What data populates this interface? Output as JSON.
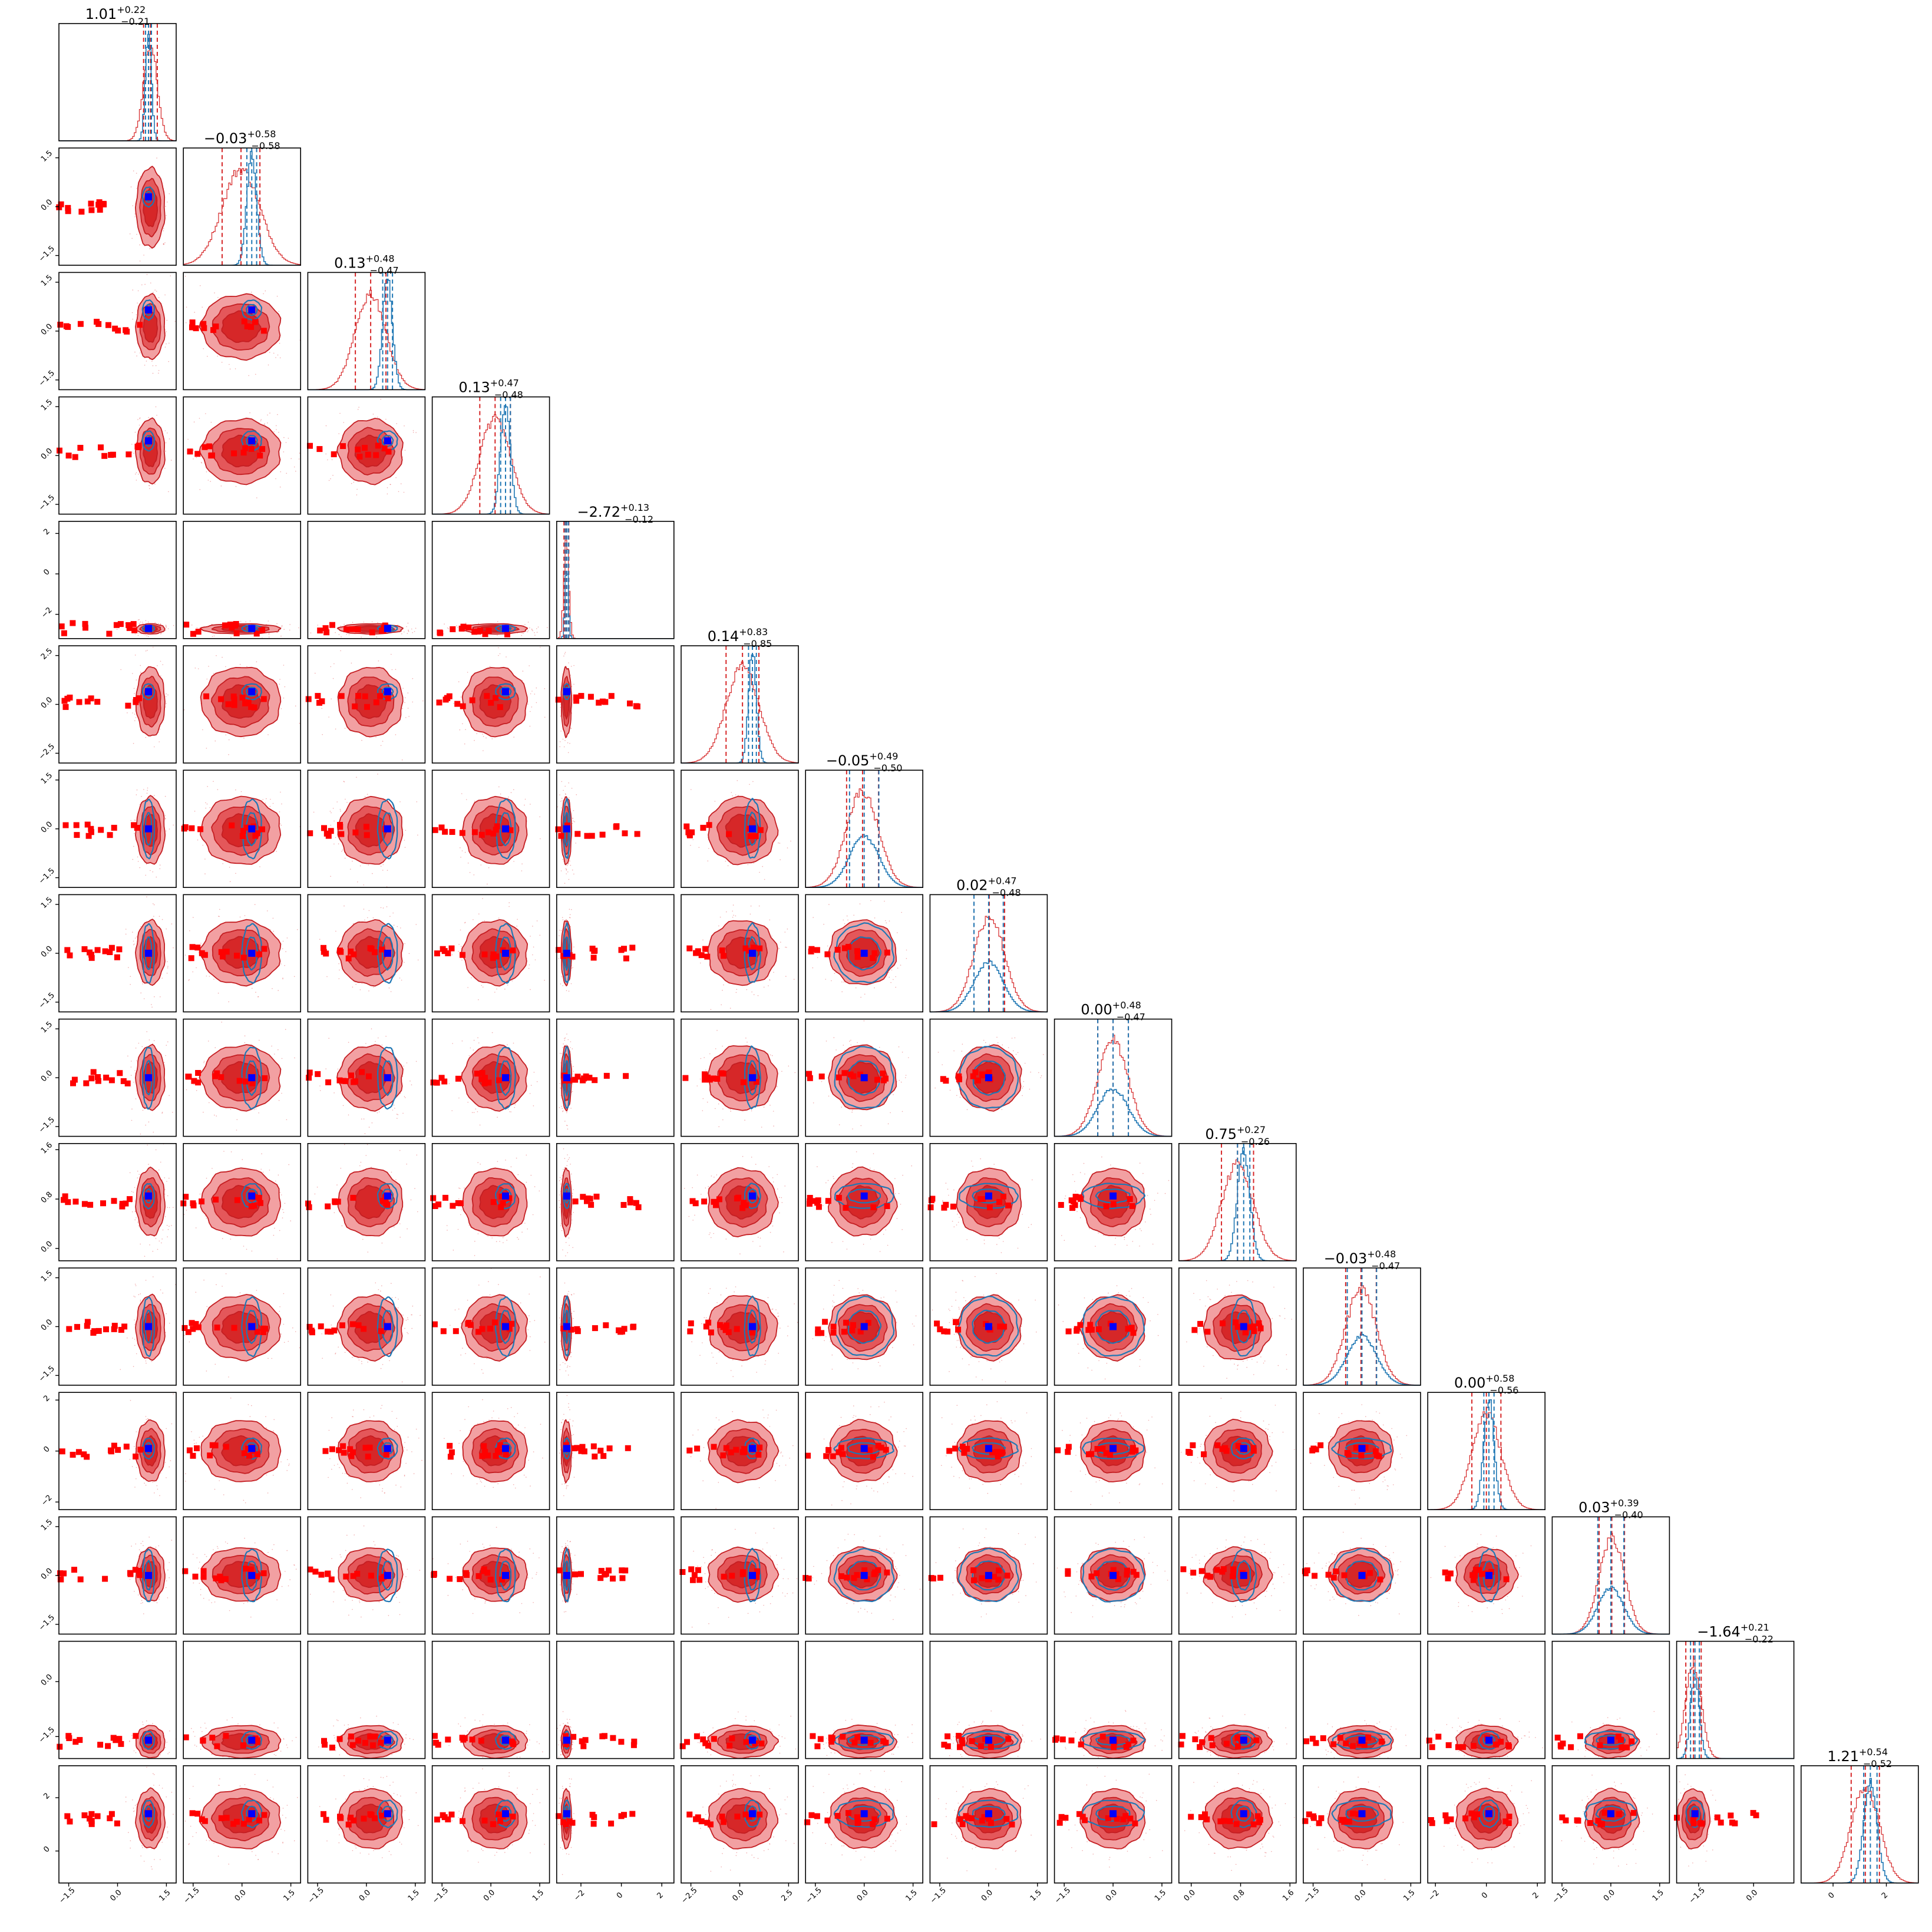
{
  "colors": {
    "red_main": "#d62728",
    "red_light": "#f2a0a2",
    "red_mid": "#e4575a",
    "red_dark": "#c41e22",
    "blue_main": "#1f77b4",
    "marker_blue": "#0000ff",
    "marker_red": "#ff0000",
    "frame": "#000000"
  },
  "chart_data": {
    "type": "corner",
    "n_params": 15,
    "grid": false,
    "parameters": [
      {
        "index": 0,
        "median": "1.01",
        "upper": "+0.22",
        "lower": "−0.21",
        "center": 1.01,
        "sigma": 0.21,
        "blue_center": 0.95,
        "blue_sigma": 0.09,
        "truth": 0.95,
        "range": [
          -1.8,
          1.8
        ],
        "ticks": [
          -1.5,
          0.0,
          1.5
        ],
        "tick_labels": [
          "−1.5",
          "0.0",
          "1.5"
        ]
      },
      {
        "index": 1,
        "median": "−0.03",
        "upper": "+0.58",
        "lower": "−0.58",
        "center": -0.03,
        "sigma": 0.58,
        "blue_center": 0.3,
        "blue_sigma": 0.15,
        "truth": 0.3,
        "range": [
          -1.8,
          1.8
        ],
        "ticks": [
          -1.5,
          0.0,
          1.5
        ],
        "tick_labels": [
          "−1.5",
          "0.0",
          "1.5"
        ]
      },
      {
        "index": 2,
        "median": "0.13",
        "upper": "+0.48",
        "lower": "−0.47",
        "center": 0.13,
        "sigma": 0.47,
        "blue_center": 0.65,
        "blue_sigma": 0.15,
        "truth": 0.65,
        "range": [
          -1.8,
          1.8
        ],
        "ticks": [
          -1.5,
          0.0,
          1.5
        ],
        "tick_labels": [
          "−1.5",
          "0.0",
          "1.5"
        ]
      },
      {
        "index": 3,
        "median": "0.13",
        "upper": "+0.47",
        "lower": "−0.48",
        "center": 0.13,
        "sigma": 0.47,
        "blue_center": 0.45,
        "blue_sigma": 0.15,
        "truth": 0.45,
        "range": [
          -1.8,
          1.8
        ],
        "ticks": [
          -1.5,
          0.0,
          1.5
        ],
        "tick_labels": [
          "−1.5",
          "0.0",
          "1.5"
        ]
      },
      {
        "index": 4,
        "median": "−2.72",
        "upper": "+0.13",
        "lower": "−0.12",
        "center": -2.72,
        "sigma": 0.12,
        "blue_center": -2.7,
        "blue_sigma": 0.08,
        "truth": -2.7,
        "range": [
          -3.2,
          2.6
        ],
        "ticks": [
          -2.0,
          0.0,
          2.0
        ],
        "tick_labels": [
          "−2",
          "0",
          "2"
        ]
      },
      {
        "index": 5,
        "median": "0.14",
        "upper": "+0.83",
        "lower": "−0.85",
        "center": 0.14,
        "sigma": 0.84,
        "blue_center": 0.65,
        "blue_sigma": 0.2,
        "truth": 0.65,
        "range": [
          -3.0,
          3.0
        ],
        "ticks": [
          -2.5,
          0.0,
          2.5
        ],
        "tick_labels": [
          "−2.5",
          "0.0",
          "2.5"
        ]
      },
      {
        "index": 6,
        "median": "−0.05",
        "upper": "+0.49",
        "lower": "−0.50",
        "center": -0.05,
        "sigma": 0.49,
        "blue_center": 0.0,
        "blue_sigma": 0.45,
        "truth": 0.0,
        "range": [
          -1.8,
          1.8
        ],
        "ticks": [
          -1.5,
          0.0,
          1.5
        ],
        "tick_labels": [
          "−1.5",
          "0.0",
          "1.5"
        ]
      },
      {
        "index": 7,
        "median": "0.02",
        "upper": "+0.47",
        "lower": "−0.48",
        "center": 0.02,
        "sigma": 0.47,
        "blue_center": 0.0,
        "blue_sigma": 0.45,
        "truth": 0.0,
        "range": [
          -1.8,
          1.8
        ],
        "ticks": [
          -1.5,
          0.0,
          1.5
        ],
        "tick_labels": [
          "−1.5",
          "0.0",
          "1.5"
        ]
      },
      {
        "index": 8,
        "median": "0.00",
        "upper": "+0.48",
        "lower": "−0.47",
        "center": 0.0,
        "sigma": 0.47,
        "blue_center": 0.0,
        "blue_sigma": 0.47,
        "truth": 0.0,
        "range": [
          -1.8,
          1.8
        ],
        "ticks": [
          -1.5,
          0.0,
          1.5
        ],
        "tick_labels": [
          "−1.5",
          "0.0",
          "1.5"
        ]
      },
      {
        "index": 9,
        "median": "0.75",
        "upper": "+0.27",
        "lower": "−0.26",
        "center": 0.75,
        "sigma": 0.26,
        "blue_center": 0.85,
        "blue_sigma": 0.1,
        "truth": 0.85,
        "range": [
          -0.2,
          1.7
        ],
        "ticks": [
          0.0,
          0.8,
          1.6
        ],
        "tick_labels": [
          "0.0",
          "0.8",
          "1.6"
        ]
      },
      {
        "index": 10,
        "median": "−0.03",
        "upper": "+0.48",
        "lower": "−0.47",
        "center": -0.03,
        "sigma": 0.47,
        "blue_center": 0.0,
        "blue_sigma": 0.45,
        "truth": 0.0,
        "range": [
          -1.8,
          1.8
        ],
        "ticks": [
          -1.5,
          0.0,
          1.5
        ],
        "tick_labels": [
          "−1.5",
          "0.0",
          "1.5"
        ]
      },
      {
        "index": 11,
        "median": "0.00",
        "upper": "+0.58",
        "lower": "−0.56",
        "center": 0.0,
        "sigma": 0.57,
        "blue_center": 0.1,
        "blue_sigma": 0.2,
        "truth": 0.1,
        "range": [
          -2.3,
          2.3
        ],
        "ticks": [
          -2.0,
          0.0,
          2.0
        ],
        "tick_labels": [
          "−2",
          "0",
          "2"
        ]
      },
      {
        "index": 12,
        "median": "0.03",
        "upper": "+0.39",
        "lower": "−0.40",
        "center": 0.03,
        "sigma": 0.39,
        "blue_center": 0.0,
        "blue_sigma": 0.4,
        "truth": 0.0,
        "range": [
          -1.8,
          1.8
        ],
        "ticks": [
          -1.5,
          0.0,
          1.5
        ],
        "tick_labels": [
          "−1.5",
          "0.0",
          "1.5"
        ]
      },
      {
        "index": 13,
        "median": "−1.64",
        "upper": "+0.21",
        "lower": "−0.22",
        "center": -1.64,
        "sigma": 0.21,
        "blue_center": -1.6,
        "blue_sigma": 0.12,
        "truth": -1.6,
        "range": [
          -2.1,
          1.1
        ],
        "ticks": [
          -1.5,
          0.0
        ],
        "tick_labels": [
          "−1.5",
          "0.0"
        ]
      },
      {
        "index": 14,
        "median": "1.21",
        "upper": "+0.54",
        "lower": "−0.52",
        "center": 1.21,
        "sigma": 0.53,
        "blue_center": 1.4,
        "blue_sigma": 0.25,
        "truth": 1.4,
        "range": [
          -1.2,
          3.2
        ],
        "ticks": [
          0.0,
          2.0
        ],
        "tick_labels": [
          "0",
          "2"
        ]
      }
    ]
  }
}
